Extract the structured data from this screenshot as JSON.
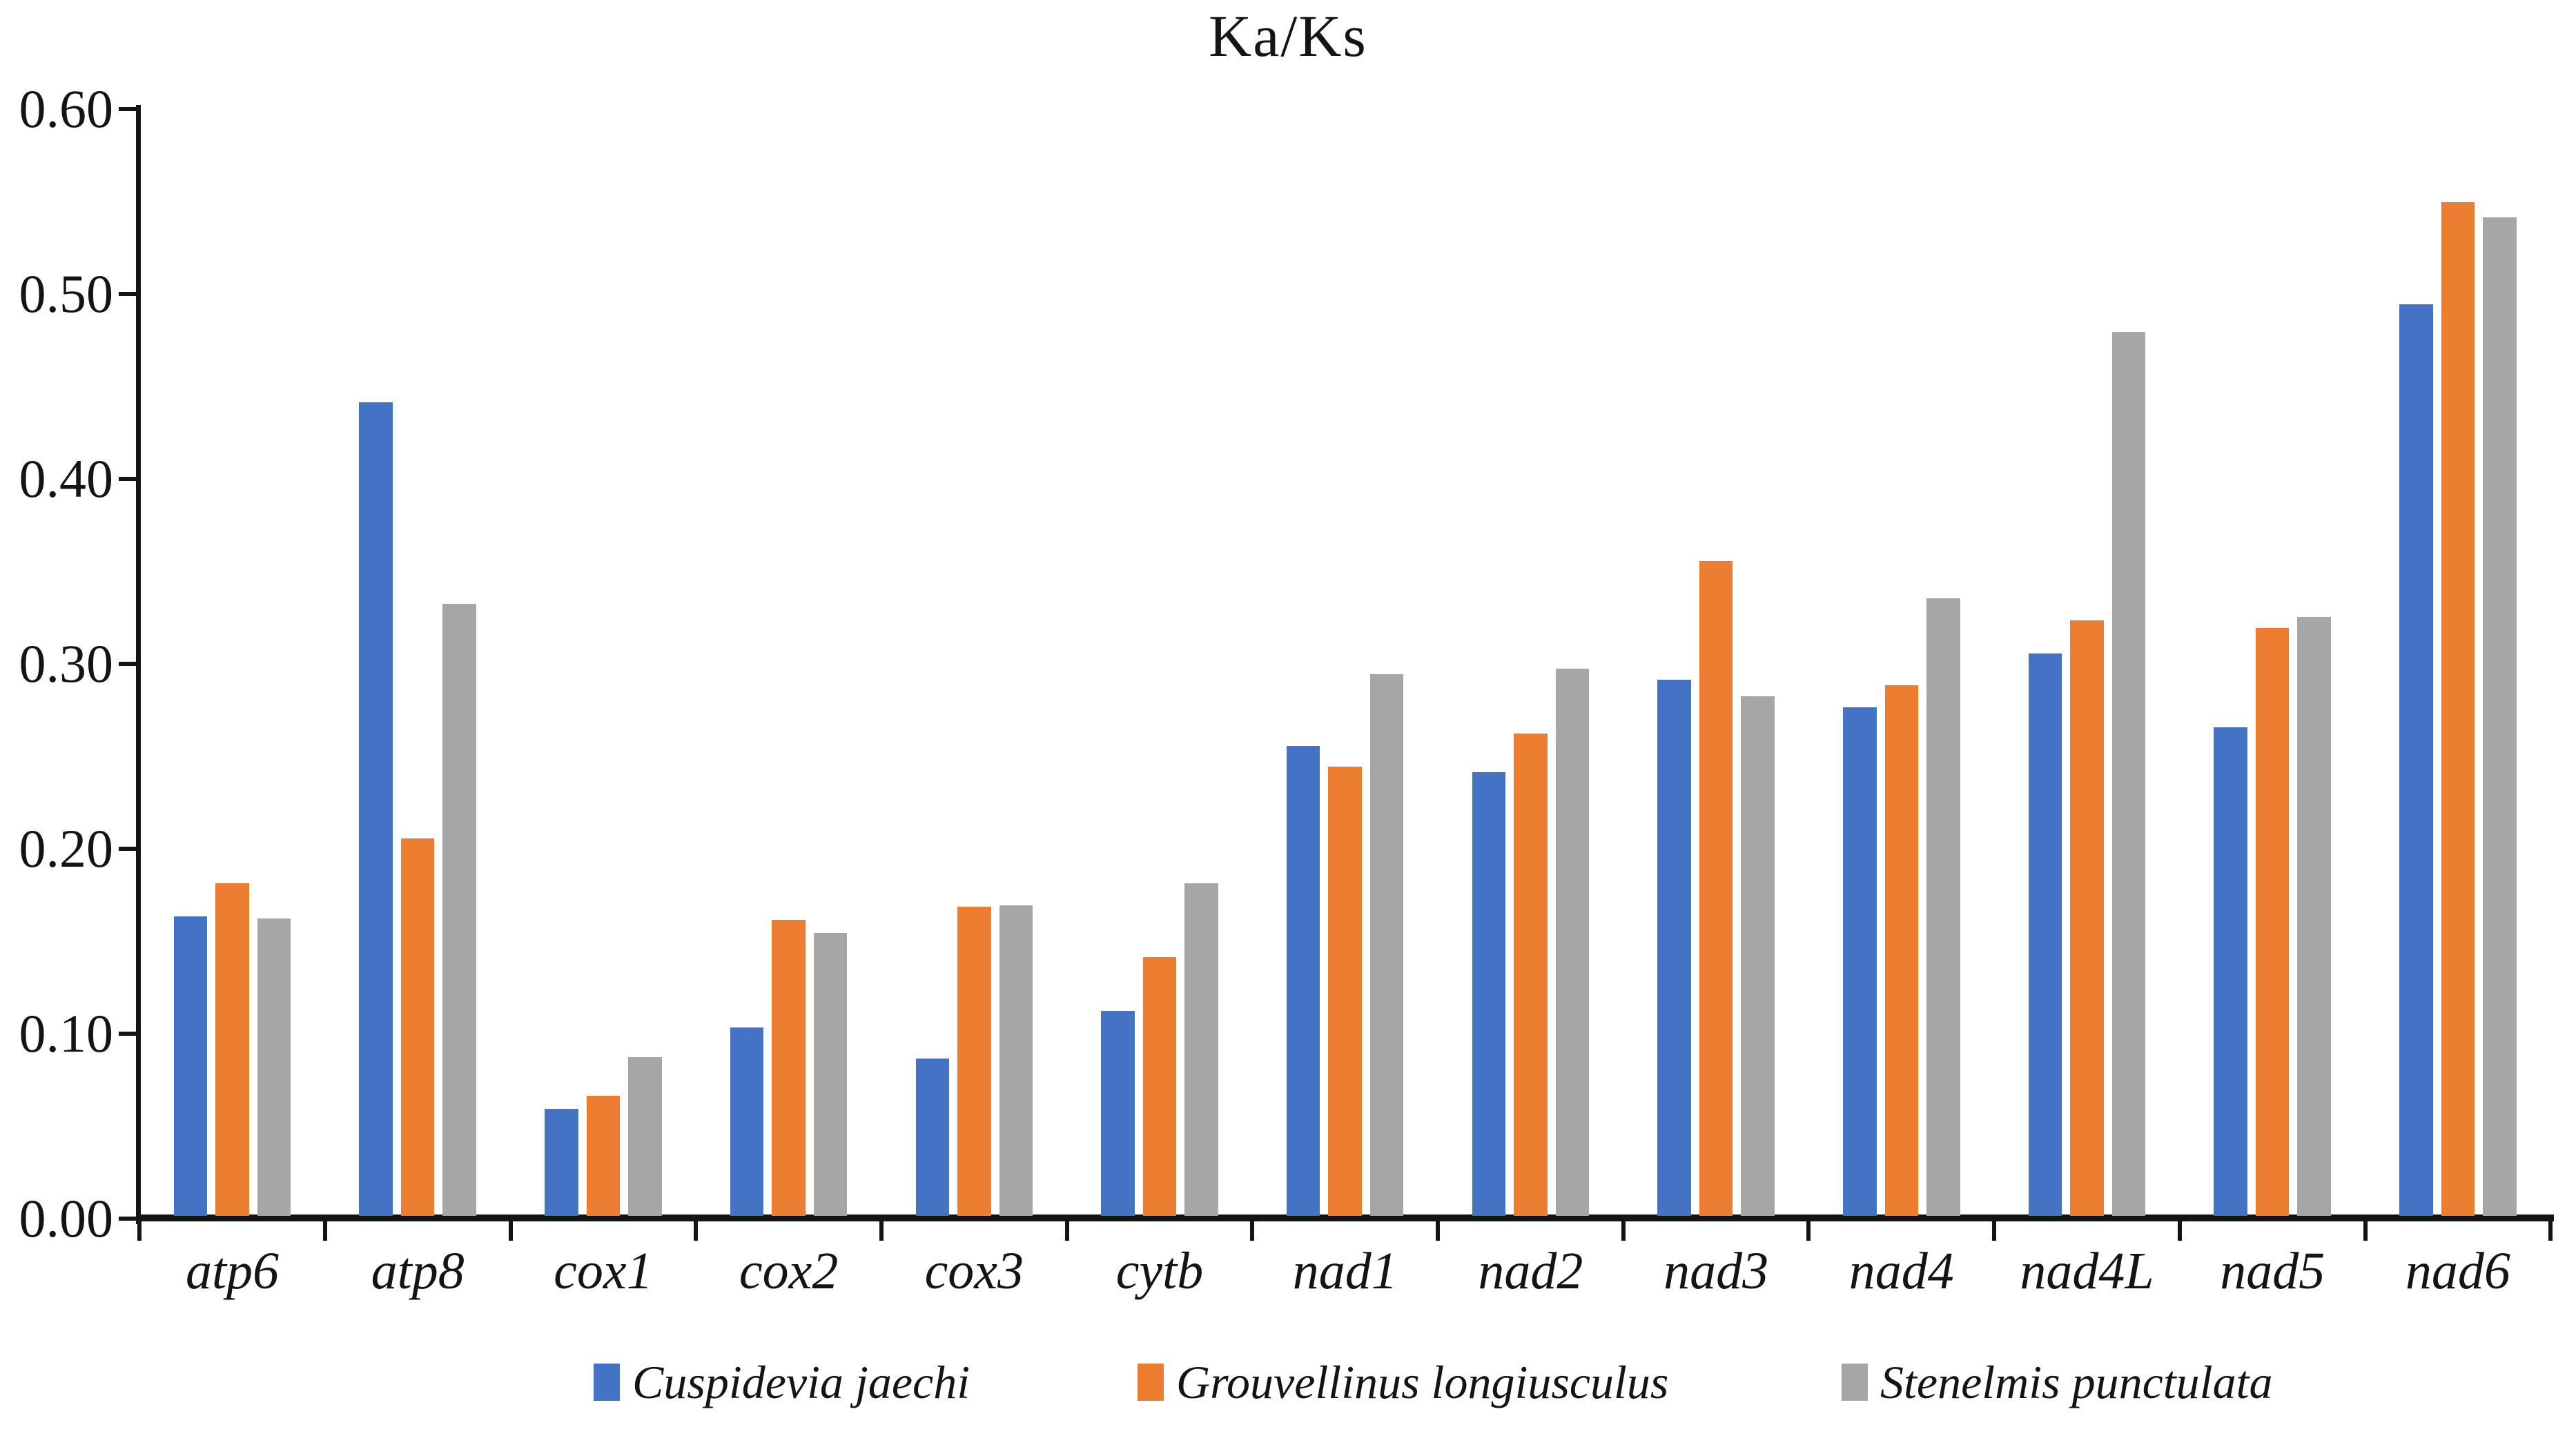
{
  "title": "Ka/Ks",
  "chart_data": {
    "type": "bar",
    "title": "Ka/Ks",
    "xlabel": "",
    "ylabel": "",
    "categories": [
      "atp6",
      "atp8",
      "cox1",
      "cox2",
      "cox3",
      "cytb",
      "nad1",
      "nad2",
      "nad3",
      "nad4",
      "nad4L",
      "nad5",
      "nad6"
    ],
    "series": [
      {
        "name": "Cuspidevia jaechi",
        "color": "#4472C4",
        "values": [
          0.162,
          0.44,
          0.058,
          0.102,
          0.085,
          0.111,
          0.254,
          0.24,
          0.29,
          0.275,
          0.304,
          0.264,
          0.493
        ]
      },
      {
        "name": "Grouvellinus longiusculus",
        "color": "#ED7D31",
        "values": [
          0.18,
          0.204,
          0.065,
          0.16,
          0.167,
          0.14,
          0.243,
          0.261,
          0.354,
          0.287,
          0.322,
          0.318,
          0.548
        ]
      },
      {
        "name": "Stenelmis punctulata",
        "color": "#A6A6A6",
        "values": [
          0.161,
          0.331,
          0.086,
          0.153,
          0.168,
          0.18,
          0.293,
          0.296,
          0.281,
          0.334,
          0.478,
          0.324,
          0.54
        ]
      }
    ],
    "ylim": [
      0.0,
      0.6
    ],
    "y_ticks": [
      "0.00",
      "0.10",
      "0.20",
      "0.30",
      "0.40",
      "0.50",
      "0.60"
    ],
    "grid": false,
    "legend_position": "bottom",
    "axis_color": "#141414"
  }
}
